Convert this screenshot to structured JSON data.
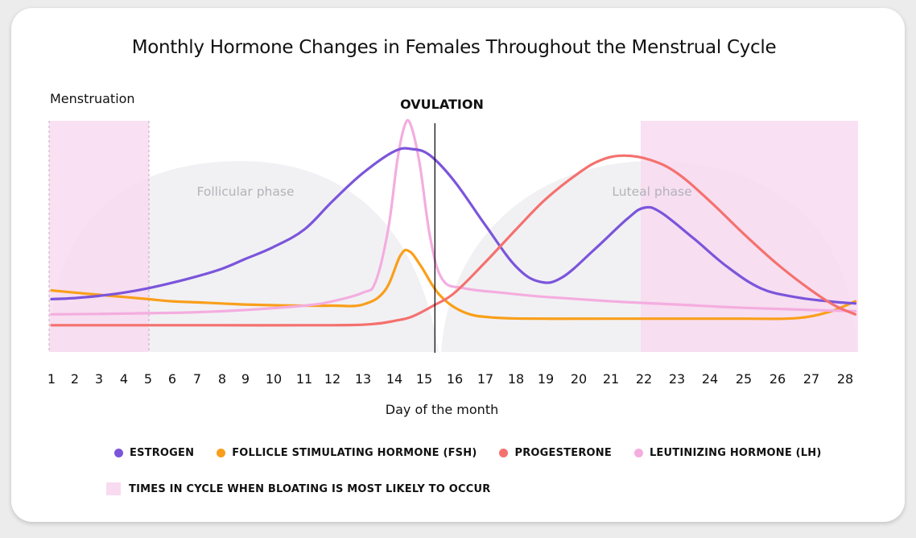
{
  "chart_data": {
    "type": "line",
    "title": "Monthly Hormone Changes in Females Throughout the Menstrual Cycle",
    "xlabel": "Day of the month",
    "ylabel": "",
    "x": [
      1,
      2,
      3,
      4,
      5,
      6,
      7,
      8,
      9,
      10,
      11,
      12,
      13,
      14,
      15,
      16,
      17,
      18,
      19,
      20,
      21,
      22,
      23,
      24,
      25,
      26,
      27,
      28
    ],
    "annotations": {
      "menstruation": "Menstruation",
      "ovulation": "OVULATION",
      "follicular": "Follicular phase",
      "luteal": "Luteal phase"
    },
    "series": [
      {
        "name": "ESTROGEN",
        "color": "#7b55db",
        "points": [
          [
            1,
            18
          ],
          [
            2,
            18.5
          ],
          [
            3,
            19.5
          ],
          [
            4,
            21
          ],
          [
            5,
            23
          ],
          [
            6,
            25.5
          ],
          [
            7,
            28.5
          ],
          [
            8,
            32
          ],
          [
            9,
            36.5
          ],
          [
            10,
            42
          ],
          [
            11,
            50
          ],
          [
            12,
            63
          ],
          [
            13,
            76
          ],
          [
            14,
            86
          ],
          [
            14.6,
            87
          ],
          [
            15.2,
            84
          ],
          [
            16,
            72
          ],
          [
            17,
            52
          ],
          [
            18,
            33
          ],
          [
            18.8,
            26
          ],
          [
            19.5,
            28
          ],
          [
            20.5,
            41
          ],
          [
            21.5,
            55
          ],
          [
            22,
            60
          ],
          [
            22.5,
            58
          ],
          [
            23.5,
            46
          ],
          [
            24.5,
            33
          ],
          [
            25.5,
            23
          ],
          [
            26.5,
            19
          ],
          [
            27.5,
            17
          ],
          [
            28.3,
            16
          ]
        ]
      },
      {
        "name": "FOLLICLE STIMULATING HORMONE (FSH)",
        "color": "#f99f1a",
        "points": [
          [
            1,
            22
          ],
          [
            2,
            21
          ],
          [
            3,
            20
          ],
          [
            4,
            19
          ],
          [
            5,
            18
          ],
          [
            6,
            17
          ],
          [
            7,
            16.5
          ],
          [
            8,
            16
          ],
          [
            9,
            15.5
          ],
          [
            10,
            15.2
          ],
          [
            11,
            15
          ],
          [
            12,
            15
          ],
          [
            13,
            15.5
          ],
          [
            13.7,
            22
          ],
          [
            14.2,
            38
          ],
          [
            14.5,
            40
          ],
          [
            14.9,
            33
          ],
          [
            15.5,
            20
          ],
          [
            16.3,
            12
          ],
          [
            17.3,
            9.5
          ],
          [
            19,
            9
          ],
          [
            21,
            9
          ],
          [
            23,
            9
          ],
          [
            25,
            9
          ],
          [
            26.5,
            9.2
          ],
          [
            27.5,
            12
          ],
          [
            28.3,
            17
          ]
        ]
      },
      {
        "name": "PROGESTERONE",
        "color": "#f4716e",
        "points": [
          [
            1,
            6
          ],
          [
            4,
            6
          ],
          [
            8,
            6
          ],
          [
            12,
            6
          ],
          [
            13.3,
            6.5
          ],
          [
            14,
            8
          ],
          [
            14.6,
            10
          ],
          [
            15.3,
            15
          ],
          [
            16,
            21
          ],
          [
            17,
            35
          ],
          [
            18,
            50
          ],
          [
            19,
            64
          ],
          [
            20,
            76
          ],
          [
            20.7,
            82
          ],
          [
            21.4,
            84
          ],
          [
            22.2,
            82
          ],
          [
            23,
            76
          ],
          [
            24,
            63
          ],
          [
            25,
            48
          ],
          [
            26,
            34
          ],
          [
            27,
            22
          ],
          [
            27.7,
            15
          ],
          [
            28.3,
            11
          ]
        ]
      },
      {
        "name": "LEUTINIZING HORMONE (LH)",
        "color": "#f4addf",
        "points": [
          [
            1,
            11
          ],
          [
            3,
            11.2
          ],
          [
            5,
            11.5
          ],
          [
            7,
            12
          ],
          [
            9,
            13
          ],
          [
            11,
            15
          ],
          [
            12,
            17
          ],
          [
            13,
            21
          ],
          [
            13.4,
            26
          ],
          [
            13.8,
            50
          ],
          [
            14.1,
            82
          ],
          [
            14.35,
            98
          ],
          [
            14.55,
            98
          ],
          [
            14.85,
            80
          ],
          [
            15.2,
            46
          ],
          [
            15.6,
            27
          ],
          [
            16.3,
            23
          ],
          [
            17.5,
            21
          ],
          [
            19,
            19
          ],
          [
            21,
            17
          ],
          [
            23,
            15.5
          ],
          [
            25,
            14
          ],
          [
            27,
            13
          ],
          [
            28.3,
            12.5
          ]
        ]
      }
    ],
    "bloating_periods": [
      [
        1,
        5
      ],
      [
        22,
        28.3
      ]
    ],
    "ovulation_day": 15.35,
    "legend": {
      "items": [
        "ESTROGEN",
        "FOLLICLE STIMULATING HORMONE (FSH)",
        "PROGESTERONE",
        "LEUTINIZING HORMONE (LH)"
      ],
      "bloating": "TIMES IN CYCLE WHEN BLOATING IS MOST LIKELY TO OCCUR"
    },
    "colors": {
      "bloating": "#f8dbf0",
      "phase": "#f1f1f4",
      "axis_text": "#111111",
      "phase_text": "#b2b2b8"
    }
  }
}
